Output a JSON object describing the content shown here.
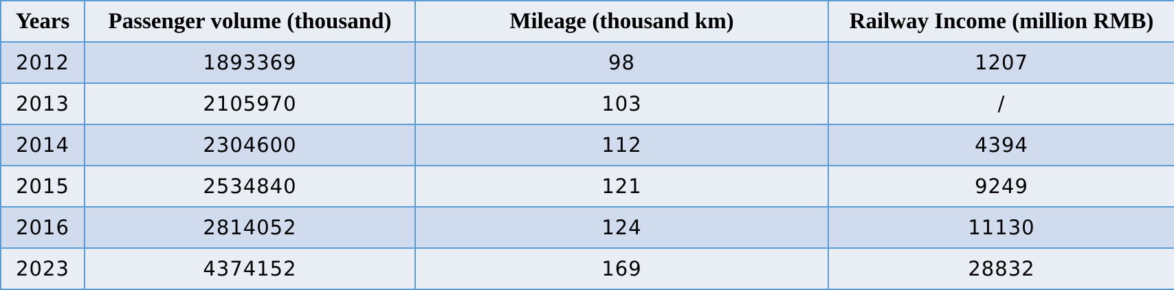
{
  "table": {
    "headers": [
      "Years",
      "Passenger volume (thousand)",
      "Mileage (thousand km)",
      "Railway Income (million RMB)"
    ],
    "rows": [
      [
        "2012",
        "1893369",
        "98",
        "1207"
      ],
      [
        "2013",
        "2105970",
        "103",
        "/"
      ],
      [
        "2014",
        "2304600",
        "112",
        "4394"
      ],
      [
        "2015",
        "2534840",
        "121",
        "9249"
      ],
      [
        "2016",
        "2814052",
        "124",
        "11130"
      ],
      [
        "2023",
        "4374152",
        "169",
        "28832"
      ]
    ]
  },
  "chart_data": {
    "type": "table",
    "columns": [
      "Years",
      "Passenger volume (thousand)",
      "Mileage (thousand km)",
      "Railway Income (million RMB)"
    ],
    "rows": [
      [
        2012,
        1893369,
        98,
        1207
      ],
      [
        2013,
        2105970,
        103,
        null
      ],
      [
        2014,
        2304600,
        112,
        4394
      ],
      [
        2015,
        2534840,
        121,
        9249
      ],
      [
        2016,
        2814052,
        124,
        11130
      ],
      [
        2023,
        4374152,
        169,
        28832
      ]
    ]
  },
  "colors": {
    "border": "#5b9bd5",
    "header_bg": "#e9edf4",
    "band_dark": "#d0dced",
    "band_light": "#e9edf4"
  }
}
